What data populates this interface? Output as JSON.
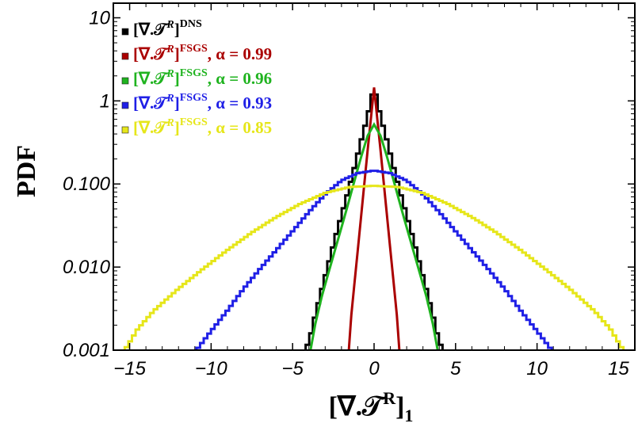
{
  "chart_data": {
    "type": "line",
    "ylabel": "PDF",
    "xlabel": {
      "main": "[∇.𝒯",
      "sup": "R",
      "close": "]",
      "sub": "1"
    },
    "xlim": [
      -16,
      16
    ],
    "ylim": [
      0.001,
      15
    ],
    "yscale": "log",
    "x_ticks": [
      -15,
      -10,
      -5,
      0,
      5,
      10,
      15
    ],
    "x_tick_labels": [
      "−15",
      "−10",
      "−5",
      "0",
      "5",
      "10",
      "15"
    ],
    "y_ticks": [
      0.001,
      0.01,
      0.1,
      1,
      10
    ],
    "y_tick_labels": [
      "0.001",
      "0.010",
      "0.100",
      "1",
      "10"
    ],
    "grid": false,
    "legend_position": "top-left",
    "series": [
      {
        "id": "dns",
        "legend": {
          "main": "[∇.𝒯",
          "sup_r": "R",
          "close": "]",
          "tag": "DNS",
          "alpha": ""
        },
        "color": "#000000",
        "style": "step",
        "half_range": 4.2,
        "points": [
          [
            0.0,
            1.5
          ],
          [
            0.4,
            0.65
          ],
          [
            0.8,
            0.33
          ],
          [
            1.2,
            0.16
          ],
          [
            1.6,
            0.08
          ],
          [
            2.0,
            0.042
          ],
          [
            2.4,
            0.022
          ],
          [
            2.8,
            0.011
          ],
          [
            3.2,
            0.0055
          ],
          [
            3.6,
            0.0027
          ],
          [
            3.9,
            0.0015
          ],
          [
            4.2,
            0.001
          ]
        ]
      },
      {
        "id": "fsgs-099",
        "legend": {
          "main": "[∇.𝒯",
          "sup_r": "R",
          "close": "]",
          "tag": "FSGS",
          "alpha": ", α = 0.99"
        },
        "color": "#aa0000",
        "style": "line",
        "half_range": 1.55,
        "points": [
          [
            0.0,
            1.45
          ],
          [
            0.2,
            0.6
          ],
          [
            0.4,
            0.25
          ],
          [
            0.6,
            0.1
          ],
          [
            0.8,
            0.04
          ],
          [
            1.0,
            0.016
          ],
          [
            1.2,
            0.0065
          ],
          [
            1.4,
            0.0026
          ],
          [
            1.55,
            0.001
          ]
        ]
      },
      {
        "id": "fsgs-096",
        "legend": {
          "main": "[∇.𝒯",
          "sup_r": "R",
          "close": "]",
          "tag": "FSGS",
          "alpha": ", α = 0.96"
        },
        "color": "#1fb31f",
        "style": "line",
        "half_range": 3.9,
        "points": [
          [
            0.0,
            0.52
          ],
          [
            0.4,
            0.38
          ],
          [
            0.8,
            0.21
          ],
          [
            1.2,
            0.11
          ],
          [
            1.6,
            0.057
          ],
          [
            2.0,
            0.03
          ],
          [
            2.4,
            0.016
          ],
          [
            2.8,
            0.0085
          ],
          [
            3.2,
            0.0045
          ],
          [
            3.6,
            0.0021
          ],
          [
            3.9,
            0.001
          ]
        ]
      },
      {
        "id": "fsgs-093",
        "legend": {
          "main": "[∇.𝒯",
          "sup_r": "R",
          "close": "]",
          "tag": "FSGS",
          "alpha": ", α = 0.93"
        },
        "color": "#1f1fe6",
        "style": "step",
        "half_range": 10.9,
        "points": [
          [
            0.0,
            0.145
          ],
          [
            1.0,
            0.135
          ],
          [
            2.0,
            0.11
          ],
          [
            3.0,
            0.075
          ],
          [
            4.0,
            0.046
          ],
          [
            5.0,
            0.027
          ],
          [
            6.0,
            0.016
          ],
          [
            7.0,
            0.0095
          ],
          [
            8.0,
            0.0055
          ],
          [
            9.0,
            0.003
          ],
          [
            10.0,
            0.0017
          ],
          [
            10.9,
            0.001
          ]
        ]
      },
      {
        "id": "fsgs-085",
        "legend": {
          "main": "[∇.𝒯",
          "sup_r": "R",
          "close": "]",
          "tag": "FSGS",
          "alpha": ", α = 0.85"
        },
        "color": "#e6e61a",
        "style": "step",
        "half_range": 15.3,
        "points": [
          [
            0.0,
            0.095
          ],
          [
            1.5,
            0.092
          ],
          [
            3.0,
            0.078
          ],
          [
            4.5,
            0.058
          ],
          [
            6.0,
            0.04
          ],
          [
            7.5,
            0.026
          ],
          [
            9.0,
            0.016
          ],
          [
            10.5,
            0.0095
          ],
          [
            12.0,
            0.0055
          ],
          [
            13.5,
            0.003
          ],
          [
            14.5,
            0.0018
          ],
          [
            15.3,
            0.001
          ]
        ]
      }
    ]
  }
}
